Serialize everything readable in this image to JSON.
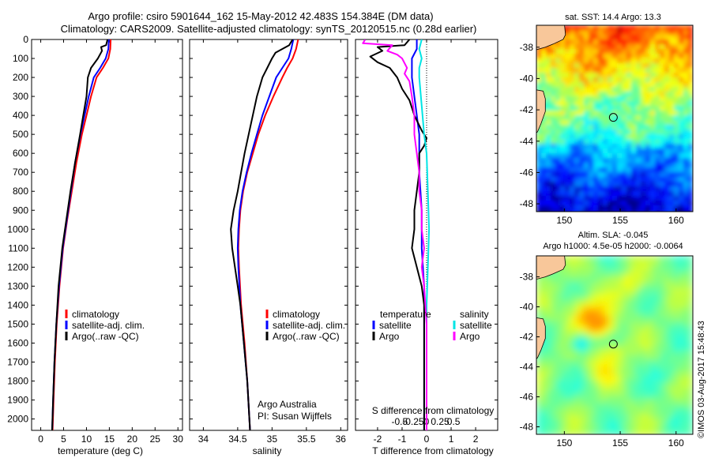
{
  "header": {
    "line1": "Argo profile: csiro 5901644_162 15-May-2012 42.483S 154.384E (DM data)",
    "line2": "Climatology: CARS2009. Satellite-adjusted climatology: synTS_20120515.nc (0.28d earlier)"
  },
  "colors": {
    "climatology": "#ff0000",
    "satellite": "#0000ff",
    "argo": "#000000",
    "salinity_satellite": "#00e5e5",
    "salinity_argo": "#ff00ff"
  },
  "chart_data": [
    {
      "type": "line",
      "name": "temperature-profile",
      "xlabel": "temperature (deg C)",
      "ylabel": "",
      "xlim": [
        -2,
        31
      ],
      "ylim": [
        2060,
        0
      ],
      "x_ticks": [
        0,
        5,
        10,
        15,
        20,
        25,
        30
      ],
      "y_ticks": [
        0,
        100,
        200,
        300,
        400,
        500,
        600,
        700,
        800,
        900,
        1000,
        1100,
        1200,
        1300,
        1400,
        1500,
        1600,
        1700,
        1800,
        1900,
        2000
      ],
      "legend": [
        "climatology",
        "satellite-adj. clim.",
        "Argo(..raw -QC)"
      ],
      "series": [
        {
          "name": "climatology",
          "color": "#ff0000",
          "points": [
            [
              15.3,
              0
            ],
            [
              15.2,
              50
            ],
            [
              14.8,
              100
            ],
            [
              13.6,
              150
            ],
            [
              12.2,
              200
            ],
            [
              11.0,
              300
            ],
            [
              10.0,
              400
            ],
            [
              9.0,
              500
            ],
            [
              7.8,
              650
            ],
            [
              6.8,
              800
            ],
            [
              5.8,
              950
            ],
            [
              4.9,
              1100
            ],
            [
              4.1,
              1300
            ],
            [
              3.5,
              1500
            ],
            [
              3.1,
              1700
            ],
            [
              2.8,
              1900
            ],
            [
              2.6,
              2060
            ]
          ]
        },
        {
          "name": "satellite-adj. clim.",
          "color": "#0000ff",
          "points": [
            [
              14.9,
              0
            ],
            [
              14.8,
              50
            ],
            [
              14.2,
              100
            ],
            [
              13.0,
              150
            ],
            [
              11.6,
              200
            ],
            [
              10.5,
              300
            ],
            [
              9.6,
              400
            ],
            [
              8.7,
              500
            ],
            [
              7.5,
              650
            ],
            [
              6.6,
              800
            ],
            [
              5.7,
              950
            ],
            [
              4.8,
              1100
            ],
            [
              4.0,
              1300
            ],
            [
              3.4,
              1500
            ],
            [
              3.0,
              1700
            ],
            [
              2.7,
              1900
            ],
            [
              2.5,
              2060
            ]
          ]
        },
        {
          "name": "Argo(..raw -QC)",
          "color": "#000000",
          "points": [
            [
              14.6,
              0
            ],
            [
              14.3,
              30
            ],
            [
              13.2,
              40
            ],
            [
              13.4,
              60
            ],
            [
              12.5,
              100
            ],
            [
              11.0,
              150
            ],
            [
              10.3,
              200
            ],
            [
              10.0,
              300
            ],
            [
              9.3,
              400
            ],
            [
              8.6,
              500
            ],
            [
              7.5,
              650
            ],
            [
              6.5,
              800
            ],
            [
              5.6,
              950
            ],
            [
              4.7,
              1100
            ],
            [
              3.9,
              1300
            ],
            [
              3.4,
              1500
            ],
            [
              3.0,
              1700
            ],
            [
              2.7,
              1900
            ],
            [
              2.5,
              2060
            ]
          ]
        }
      ]
    },
    {
      "type": "line",
      "name": "salinity-profile",
      "xlabel": "salinity",
      "xlim": [
        33.8,
        36.1
      ],
      "ylim": [
        2060,
        0
      ],
      "x_ticks": [
        34,
        34.5,
        35,
        35.5,
        36
      ],
      "x_tick_labels": [
        "34",
        "34.5",
        "35",
        "35.5",
        "36"
      ],
      "legend": [
        "climatology",
        "satellite-adj. clim.",
        "Argo(..raw -QC)"
      ],
      "annotation": [
        "Argo Australia",
        "PI: Susan Wijffels"
      ],
      "series": [
        {
          "name": "climatology",
          "color": "#ff0000",
          "points": [
            [
              35.38,
              0
            ],
            [
              35.35,
              50
            ],
            [
              35.3,
              100
            ],
            [
              35.22,
              150
            ],
            [
              35.15,
              200
            ],
            [
              35.02,
              300
            ],
            [
              34.9,
              400
            ],
            [
              34.8,
              500
            ],
            [
              34.72,
              600
            ],
            [
              34.64,
              700
            ],
            [
              34.58,
              800
            ],
            [
              34.54,
              900
            ],
            [
              34.52,
              1000
            ],
            [
              34.51,
              1100
            ],
            [
              34.52,
              1200
            ],
            [
              34.55,
              1400
            ],
            [
              34.6,
              1600
            ],
            [
              34.64,
              1800
            ],
            [
              34.68,
              2060
            ]
          ]
        },
        {
          "name": "satellite-adj. clim.",
          "color": "#0000ff",
          "points": [
            [
              35.31,
              0
            ],
            [
              35.28,
              50
            ],
            [
              35.24,
              100
            ],
            [
              35.15,
              150
            ],
            [
              35.06,
              200
            ],
            [
              34.96,
              300
            ],
            [
              34.86,
              400
            ],
            [
              34.78,
              500
            ],
            [
              34.7,
              600
            ],
            [
              34.63,
              700
            ],
            [
              34.57,
              800
            ],
            [
              34.53,
              900
            ],
            [
              34.51,
              1000
            ],
            [
              34.5,
              1100
            ],
            [
              34.51,
              1200
            ],
            [
              34.54,
              1400
            ],
            [
              34.59,
              1600
            ],
            [
              34.64,
              1800
            ],
            [
              34.68,
              2060
            ]
          ]
        },
        {
          "name": "Argo(..raw -QC)",
          "color": "#000000",
          "points": [
            [
              35.3,
              0
            ],
            [
              35.25,
              30
            ],
            [
              35.05,
              70
            ],
            [
              35.0,
              100
            ],
            [
              34.93,
              150
            ],
            [
              34.86,
              200
            ],
            [
              34.78,
              300
            ],
            [
              34.72,
              400
            ],
            [
              34.66,
              500
            ],
            [
              34.6,
              600
            ],
            [
              34.55,
              700
            ],
            [
              34.5,
              800
            ],
            [
              34.44,
              900
            ],
            [
              34.4,
              1000
            ],
            [
              34.42,
              1100
            ],
            [
              34.46,
              1200
            ],
            [
              34.5,
              1300
            ],
            [
              34.54,
              1400
            ],
            [
              34.59,
              1600
            ],
            [
              34.64,
              1800
            ],
            [
              34.68,
              2060
            ]
          ]
        }
      ]
    },
    {
      "type": "line",
      "name": "difference-profile",
      "xlabel": "T difference from climatology",
      "title_bottom": "S difference from climatology",
      "xlim": [
        -2.9,
        2.9
      ],
      "ylim": [
        2060,
        0
      ],
      "x_ticks_T": [
        -2,
        -1,
        0,
        1,
        2
      ],
      "x_tick_labels_T": [
        "-2",
        "-1",
        "0",
        "1",
        "2"
      ],
      "x_ticks_S": [
        -0.5,
        -0.25,
        0,
        0.25,
        0.5
      ],
      "x_tick_labels_S": [
        "-0.5",
        "-0.25",
        "0",
        "0.25",
        "0.5"
      ],
      "legend_temperature_title": "temperature",
      "legend_salinity_title": "salinity",
      "legend_temperature": [
        "satellite",
        "Argo"
      ],
      "legend_salinity": [
        "satellite",
        "Argo"
      ],
      "series": [
        {
          "name": "T satellite",
          "color": "#0000ff",
          "points": [
            [
              -0.4,
              0
            ],
            [
              -0.4,
              50
            ],
            [
              -0.6,
              100
            ],
            [
              -0.6,
              200
            ],
            [
              -0.5,
              300
            ],
            [
              -0.4,
              400
            ],
            [
              -0.3,
              500
            ],
            [
              -0.3,
              700
            ],
            [
              -0.2,
              900
            ],
            [
              -0.2,
              1100
            ],
            [
              -0.1,
              1300
            ],
            [
              -0.1,
              1600
            ],
            [
              -0.1,
              2060
            ]
          ]
        },
        {
          "name": "T Argo",
          "color": "#000000",
          "points": [
            [
              -0.7,
              0
            ],
            [
              -0.9,
              30
            ],
            [
              -2.0,
              40
            ],
            [
              -1.8,
              60
            ],
            [
              -2.3,
              90
            ],
            [
              -2.0,
              120
            ],
            [
              -1.5,
              150
            ],
            [
              -1.2,
              200
            ],
            [
              -1.0,
              260
            ],
            [
              -0.7,
              320
            ],
            [
              -0.5,
              400
            ],
            [
              -0.2,
              480
            ],
            [
              0.0,
              520
            ],
            [
              -0.1,
              560
            ],
            [
              -0.3,
              600
            ],
            [
              -0.3,
              700
            ],
            [
              -0.4,
              800
            ],
            [
              -0.5,
              900
            ],
            [
              -0.5,
              1000
            ],
            [
              -0.6,
              1100
            ],
            [
              -0.5,
              1150
            ],
            [
              -0.4,
              1200
            ],
            [
              -0.2,
              1300
            ],
            [
              -0.1,
              1400
            ],
            [
              -0.1,
              1600
            ],
            [
              -0.1,
              2060
            ]
          ]
        },
        {
          "name": "S satellite",
          "color": "#00e5e5",
          "points": [
            [
              -0.2,
              0
            ],
            [
              -0.3,
              50
            ],
            [
              -0.2,
              100
            ],
            [
              -0.3,
              150
            ],
            [
              -0.3,
              200
            ],
            [
              -0.2,
              350
            ],
            [
              -0.1,
              500
            ],
            [
              0.0,
              600
            ],
            [
              0.05,
              800
            ],
            [
              0.1,
              1000
            ],
            [
              0.05,
              1200
            ],
            [
              0.0,
              1400
            ],
            [
              0.0,
              2060
            ]
          ]
        },
        {
          "name": "S Argo",
          "color": "#ff00ff",
          "points": [
            [
              -2.5,
              0
            ],
            [
              -2.6,
              20
            ],
            [
              -1.4,
              30
            ],
            [
              -1.6,
              60
            ],
            [
              -1.2,
              80
            ],
            [
              -1.0,
              100
            ],
            [
              -0.8,
              150
            ],
            [
              -0.9,
              180
            ],
            [
              -0.7,
              220
            ],
            [
              -0.6,
              300
            ],
            [
              -0.5,
              400
            ],
            [
              -0.5,
              500
            ],
            [
              -0.4,
              600
            ],
            [
              -0.3,
              700
            ],
            [
              -0.3,
              800
            ],
            [
              -0.2,
              900
            ],
            [
              -0.2,
              1000
            ],
            [
              -0.1,
              1100
            ],
            [
              -0.2,
              1200
            ],
            [
              -0.1,
              1300
            ],
            [
              0.0,
              1500
            ],
            [
              0.0,
              2060
            ]
          ]
        }
      ]
    },
    {
      "type": "heatmap",
      "name": "sst-map",
      "title": "sat. SST: 14.4  Argo: 13.3",
      "x_ticks": [
        150,
        155,
        160
      ],
      "x_tick_labels": [
        "150",
        "155",
        "160"
      ],
      "y_ticks": [
        -38,
        -40,
        -42,
        -44,
        -46,
        -48
      ],
      "y_tick_labels": [
        "-38",
        "-40",
        "-42",
        "-44",
        "-46",
        "-48"
      ],
      "xlim": [
        147.5,
        161.5
      ],
      "ylim": [
        -48.5,
        -36.6
      ],
      "marker": [
        154.384,
        -42.483
      ]
    },
    {
      "type": "heatmap",
      "name": "sla-map",
      "title_line1": "Altim. SLA: -0.045",
      "title_line2": "Argo h1000: 4.5e-05 h2000: -0.0064",
      "x_ticks": [
        150,
        155,
        160
      ],
      "x_tick_labels": [
        "150",
        "155",
        "160"
      ],
      "y_ticks": [
        -38,
        -40,
        -42,
        -44,
        -46,
        -48
      ],
      "y_tick_labels": [
        "-38",
        "-40",
        "-42",
        "-44",
        "-46",
        "-48"
      ],
      "xlim": [
        147.5,
        161.5
      ],
      "ylim": [
        -48.5,
        -36.6
      ],
      "marker": [
        154.384,
        -42.483
      ]
    }
  ],
  "credit": "©IMOS 03-Aug-2017 15:48:43"
}
